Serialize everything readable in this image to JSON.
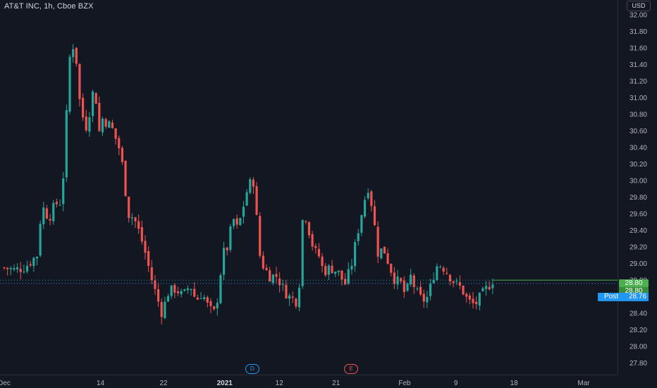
{
  "header": {
    "symbol": "AT&T INC, 1h, Cboe BZX",
    "currency": "USD"
  },
  "chart_data": {
    "type": "candlestick",
    "symbol": "AT&T INC",
    "interval": "1h",
    "exchange": "Cboe BZX",
    "currency": "USD",
    "ylim": [
      27.66,
      32.18
    ],
    "y_ticks": [
      "32.00",
      "31.80",
      "31.60",
      "31.40",
      "31.20",
      "31.00",
      "30.80",
      "30.60",
      "30.40",
      "30.20",
      "30.00",
      "29.80",
      "29.60",
      "29.40",
      "29.20",
      "29.00",
      "28.80",
      "28.60",
      "28.40",
      "28.20",
      "28.00",
      "27.80"
    ],
    "x_ticks": [
      {
        "label": "Dec",
        "bold": false,
        "pos": 0.0
      },
      {
        "label": "14",
        "bold": false,
        "pos": 0.1616
      },
      {
        "label": "22",
        "bold": false,
        "pos": 0.2675
      },
      {
        "label": "2021",
        "bold": true,
        "pos": 0.3701
      },
      {
        "label": "12",
        "bold": false,
        "pos": 0.4618
      },
      {
        "label": "21",
        "bold": false,
        "pos": 0.5571
      },
      {
        "label": "Feb",
        "bold": false,
        "pos": 0.6722
      },
      {
        "label": "9",
        "bold": false,
        "pos": 0.7582
      },
      {
        "label": "18",
        "bold": false,
        "pos": 0.8558
      },
      {
        "label": "Mar",
        "bold": false,
        "pos": 0.9728
      }
    ],
    "anchors": [
      [
        0.0,
        28.95
      ],
      [
        0.018,
        28.92
      ],
      [
        0.035,
        28.96
      ],
      [
        0.055,
        29.1
      ],
      [
        0.063,
        29.7
      ],
      [
        0.075,
        29.55
      ],
      [
        0.086,
        29.72
      ],
      [
        0.097,
        29.75
      ],
      [
        0.103,
        30.65
      ],
      [
        0.108,
        31.1
      ],
      [
        0.112,
        31.85
      ],
      [
        0.116,
        31.6
      ],
      [
        0.121,
        31.45
      ],
      [
        0.128,
        30.85
      ],
      [
        0.138,
        30.65
      ],
      [
        0.145,
        30.9
      ],
      [
        0.152,
        31.2
      ],
      [
        0.158,
        30.55
      ],
      [
        0.165,
        30.75
      ],
      [
        0.18,
        30.65
      ],
      [
        0.195,
        30.35
      ],
      [
        0.2,
        30.1
      ],
      [
        0.208,
        29.6
      ],
      [
        0.218,
        29.55
      ],
      [
        0.228,
        29.35
      ],
      [
        0.236,
        29.15
      ],
      [
        0.246,
        28.85
      ],
      [
        0.256,
        28.6
      ],
      [
        0.265,
        28.4
      ],
      [
        0.275,
        28.65
      ],
      [
        0.288,
        28.7
      ],
      [
        0.3,
        28.6
      ],
      [
        0.312,
        28.75
      ],
      [
        0.322,
        28.55
      ],
      [
        0.332,
        28.65
      ],
      [
        0.344,
        28.45
      ],
      [
        0.352,
        28.4
      ],
      [
        0.36,
        28.65
      ],
      [
        0.366,
        29.1
      ],
      [
        0.375,
        29.2
      ],
      [
        0.384,
        29.55
      ],
      [
        0.392,
        29.4
      ],
      [
        0.4,
        29.65
      ],
      [
        0.41,
        29.95
      ],
      [
        0.42,
        30.0
      ],
      [
        0.427,
        29.15
      ],
      [
        0.436,
        28.95
      ],
      [
        0.446,
        28.85
      ],
      [
        0.458,
        28.85
      ],
      [
        0.468,
        28.7
      ],
      [
        0.478,
        28.6
      ],
      [
        0.49,
        28.55
      ],
      [
        0.496,
        28.8
      ],
      [
        0.502,
        29.7
      ],
      [
        0.51,
        29.45
      ],
      [
        0.52,
        29.15
      ],
      [
        0.528,
        29.1
      ],
      [
        0.536,
        28.9
      ],
      [
        0.548,
        28.95
      ],
      [
        0.56,
        28.9
      ],
      [
        0.572,
        28.75
      ],
      [
        0.582,
        28.95
      ],
      [
        0.594,
        29.4
      ],
      [
        0.604,
        29.75
      ],
      [
        0.612,
        29.95
      ],
      [
        0.62,
        29.55
      ],
      [
        0.628,
        29.1
      ],
      [
        0.636,
        29.2
      ],
      [
        0.648,
        28.95
      ],
      [
        0.656,
        28.8
      ],
      [
        0.667,
        28.75
      ],
      [
        0.674,
        28.6
      ],
      [
        0.682,
        28.85
      ],
      [
        0.692,
        28.65
      ],
      [
        0.702,
        28.55
      ],
      [
        0.712,
        28.6
      ],
      [
        0.72,
        28.85
      ],
      [
        0.728,
        29.0
      ],
      [
        0.738,
        28.95
      ],
      [
        0.748,
        28.85
      ],
      [
        0.758,
        28.75
      ],
      [
        0.768,
        28.7
      ],
      [
        0.778,
        28.55
      ],
      [
        0.79,
        28.5
      ],
      [
        0.8,
        28.6
      ],
      [
        0.81,
        28.7
      ],
      [
        0.82,
        28.8
      ]
    ],
    "candle_count": 150,
    "x_end": 0.82,
    "last_price": "28.80",
    "post_label": "Post",
    "post_price": "28.76",
    "price_line": 28.8,
    "post_line": 28.76,
    "colors": {
      "up": "#26a69a",
      "down": "#ef5350",
      "background": "#131722",
      "grid": "#1e222d",
      "axis_text": "#b2b5be",
      "last_price": "#4caf50",
      "post": "#2196f3"
    },
    "markers": [
      {
        "label": "D",
        "pos": 0.4165,
        "color": "#2196f3"
      },
      {
        "label": "E",
        "pos": 0.5824,
        "color": "#ef5350"
      }
    ],
    "last_price_tags": [
      "28.80",
      "28.80"
    ],
    "grid": false,
    "legend": "none"
  }
}
